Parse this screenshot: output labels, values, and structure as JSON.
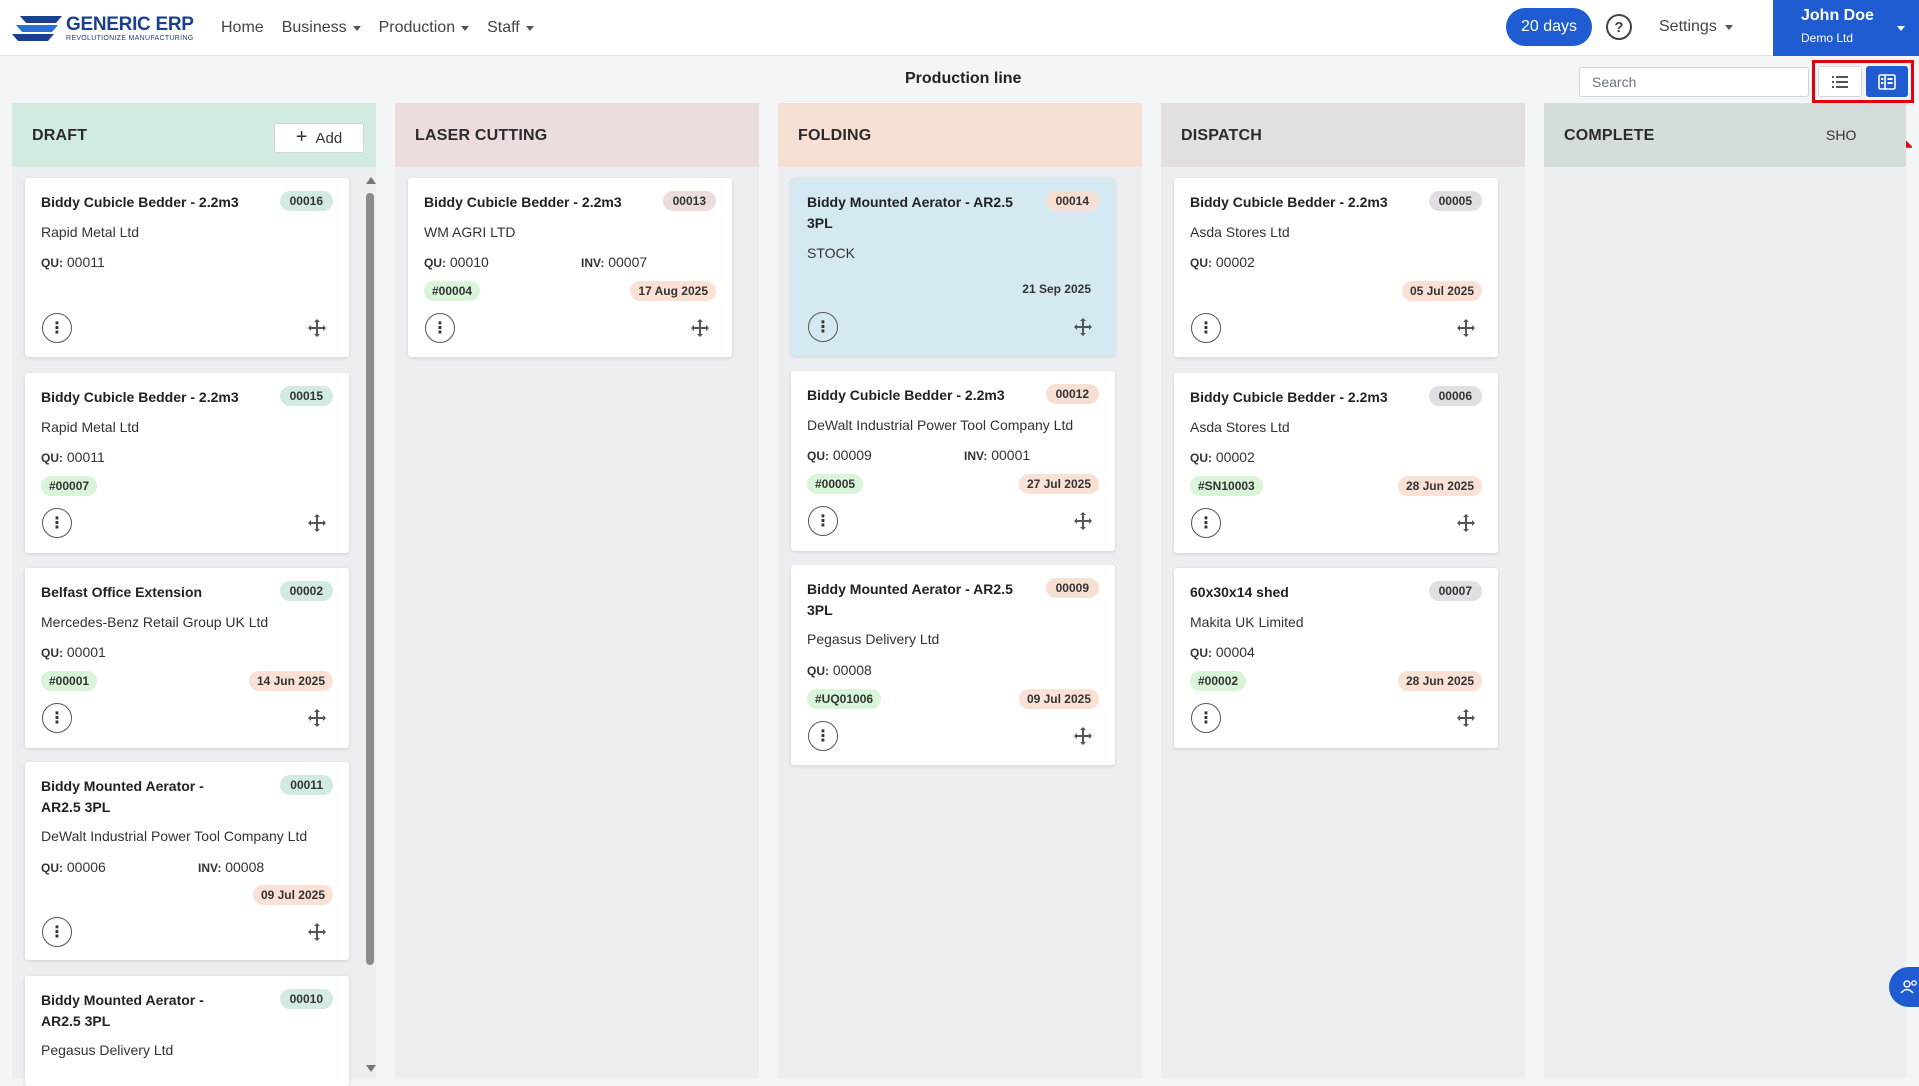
{
  "brand": {
    "name": "GENERIC ERP",
    "tagline": "REVOLUTIONIZE MANUFACTURING",
    "color": "#1a3f8f"
  },
  "nav": {
    "items": [
      "Home",
      "Business",
      "Production",
      "Staff"
    ]
  },
  "header": {
    "trial": "20 days",
    "settings": "Settings",
    "user_name": "John Doe",
    "user_company": "Demo Ltd"
  },
  "page": {
    "title": "Production line"
  },
  "search": {
    "placeholder": "Search"
  },
  "columns": [
    {
      "title": "DRAFT",
      "add_label": "Add",
      "color": "#d2ebe0"
    },
    {
      "title": "LASER CUTTING",
      "color": "#ecdcdc"
    },
    {
      "title": "FOLDING",
      "color": "#f6e0d3"
    },
    {
      "title": "DISPATCH",
      "color": "#e3dde4"
    },
    {
      "title": "COMPLETE",
      "show_label": "SHO",
      "color": "#d5ddda"
    }
  ],
  "cards": {
    "draft": [
      {
        "title": "Biddy Cubicle Bedder - 2.2m3",
        "number": "00016",
        "company": "Rapid Metal Ltd",
        "qu_label": "QU:",
        "qu": "00011"
      },
      {
        "title": "Biddy Cubicle Bedder - 2.2m3",
        "number": "00015",
        "company": "Rapid Metal Ltd",
        "qu_label": "QU:",
        "qu": "00011",
        "tag": "#00007"
      },
      {
        "title": "Belfast Office Extension",
        "number": "00002",
        "company": "Mercedes-Benz Retail Group UK Ltd",
        "qu_label": "QU:",
        "qu": "00001",
        "tag": "#00001",
        "date": "14 Jun 2025"
      },
      {
        "title": "Biddy Mounted Aerator - AR2.5 3PL",
        "title_l1": "Biddy Mounted Aerator -",
        "title_l2": "AR2.5 3PL",
        "number": "00011",
        "company": "DeWalt Industrial Power Tool Company Ltd",
        "qu_label": "QU:",
        "qu": "00006",
        "inv_label": "INV:",
        "inv": "00008",
        "date": "09 Jul 2025"
      },
      {
        "title_l1": "Biddy Mounted Aerator -",
        "title_l2": "AR2.5 3PL",
        "number": "00010",
        "company": "Pegasus Delivery Ltd"
      }
    ],
    "laser": [
      {
        "title": "Biddy Cubicle Bedder - 2.2m3",
        "number": "00013",
        "company": "WM AGRI LTD",
        "qu_label": "QU:",
        "qu": "00010",
        "inv_label": "INV:",
        "inv": "00007",
        "tag": "#00004",
        "date": "17 Aug 2025"
      }
    ],
    "folding": [
      {
        "title_l1": "Biddy Mounted Aerator - AR2.5",
        "title_l2": "3PL",
        "number": "00014",
        "company": "STOCK",
        "date": "21 Sep 2025"
      },
      {
        "title": "Biddy Cubicle Bedder - 2.2m3",
        "number": "00012",
        "company": "DeWalt Industrial Power Tool Company Ltd",
        "qu_label": "QU:",
        "qu": "00009",
        "inv_label": "INV:",
        "inv": "00001",
        "tag": "#00005",
        "date": "27 Jul 2025"
      },
      {
        "title_l1": "Biddy Mounted Aerator - AR2.5",
        "title_l2": "3PL",
        "number": "00009",
        "company": "Pegasus Delivery Ltd",
        "qu_label": "QU:",
        "qu": "00008",
        "tag": "#UQ01006",
        "date": "09 Jul 2025"
      }
    ],
    "dispatch": [
      {
        "title": "Biddy Cubicle Bedder - 2.2m3",
        "number": "00005",
        "company": "Asda Stores Ltd",
        "qu_label": "QU:",
        "qu": "00002",
        "date": "05 Jul 2025"
      },
      {
        "title": "Biddy Cubicle Bedder - 2.2m3",
        "number": "00006",
        "company": "Asda Stores Ltd",
        "qu_label": "QU:",
        "qu": "00002",
        "tag": "#SN10003",
        "date": "28 Jun 2025"
      },
      {
        "title": "60x30x14 shed",
        "number": "00007",
        "company": "Makita UK Limited",
        "qu_label": "QU:",
        "qu": "00004",
        "tag": "#00002",
        "date": "28 Jun 2025"
      }
    ]
  },
  "icons": {
    "more": "more-vertical-icon",
    "move": "move-icon",
    "list": "list-view-icon",
    "board": "board-view-icon",
    "help": "help-icon"
  },
  "colors": {
    "primary": "#1f5bd1",
    "highlight_card": "#d5e9f2",
    "annotation": "#e3000f"
  }
}
